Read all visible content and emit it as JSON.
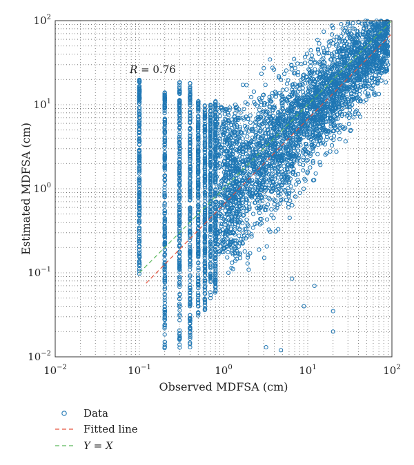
{
  "chart_data": {
    "type": "scatter",
    "xscale": "log",
    "yscale": "log",
    "xlim": [
      0.01,
      100
    ],
    "ylim": [
      0.01,
      100
    ],
    "grid": "dotted",
    "xlabel": "Observed MDFSA (cm)",
    "ylabel": "Estimated MDFSA (cm)",
    "x_ticks": [
      "10",
      "10",
      "10",
      "10",
      "10"
    ],
    "x_tick_exponents": [
      "−2",
      "−1",
      "0",
      "1",
      "2"
    ],
    "y_ticks": [
      "10",
      "10",
      "10",
      "10",
      "10"
    ],
    "y_tick_exponents": [
      "−2",
      "−1",
      "0",
      "1",
      "2"
    ],
    "annotation": {
      "r_symbol": "R",
      "r_text": " = 0.76"
    },
    "legend_position": "bottom-left-below",
    "colors": {
      "data": "#1f77b4",
      "fitted": "#e5533d",
      "identity": "#5cb85c",
      "grid": "#666666"
    },
    "series": [
      {
        "name": "Data",
        "kind": "markers",
        "marker": "open-circle",
        "vertical_columns": [
          {
            "x": 0.1,
            "y_range": [
              0.09,
              20
            ]
          },
          {
            "x": 0.2,
            "y_range": [
              0.012,
              15
            ]
          },
          {
            "x": 0.3,
            "y_range": [
              0.012,
              20
            ]
          },
          {
            "x": 0.4,
            "y_range": [
              0.012,
              18
            ]
          },
          {
            "x": 0.5,
            "y_range": [
              0.03,
              12
            ]
          },
          {
            "x": 0.6,
            "y_range": [
              0.03,
              10
            ]
          },
          {
            "x": 0.7,
            "y_range": [
              0.05,
              10
            ]
          },
          {
            "x": 0.8,
            "y_range": [
              0.05,
              11
            ]
          }
        ],
        "cloud": {
          "x_range": [
            1,
            90
          ],
          "y_median_equals_x": true
        },
        "outliers": [
          {
            "x": 25,
            "y": 65
          },
          {
            "x": 38,
            "y": 55
          },
          {
            "x": 55,
            "y": 60
          },
          {
            "x": 80,
            "y": 62
          },
          {
            "x": 90,
            "y": 30
          },
          {
            "x": 3.2,
            "y": 0.013
          },
          {
            "x": 4.8,
            "y": 0.012
          },
          {
            "x": 9,
            "y": 0.04
          },
          {
            "x": 20,
            "y": 0.035
          },
          {
            "x": 20,
            "y": 0.02
          },
          {
            "x": 6.5,
            "y": 0.085
          },
          {
            "x": 12,
            "y": 0.07
          }
        ]
      },
      {
        "name": "Fitted line",
        "kind": "line",
        "style": "dashed",
        "x": [
          0.12,
          100
        ],
        "y": [
          0.075,
          70
        ]
      },
      {
        "name": "Y = X",
        "kind": "line",
        "style": "dashed",
        "x": [
          0.1,
          100
        ],
        "y": [
          0.1,
          100
        ]
      }
    ],
    "legend": [
      {
        "label": "Data"
      },
      {
        "label": "Fitted line"
      },
      {
        "label_prefix": "Y",
        "label_suffix": " = ",
        "label_end": "X"
      }
    ]
  }
}
